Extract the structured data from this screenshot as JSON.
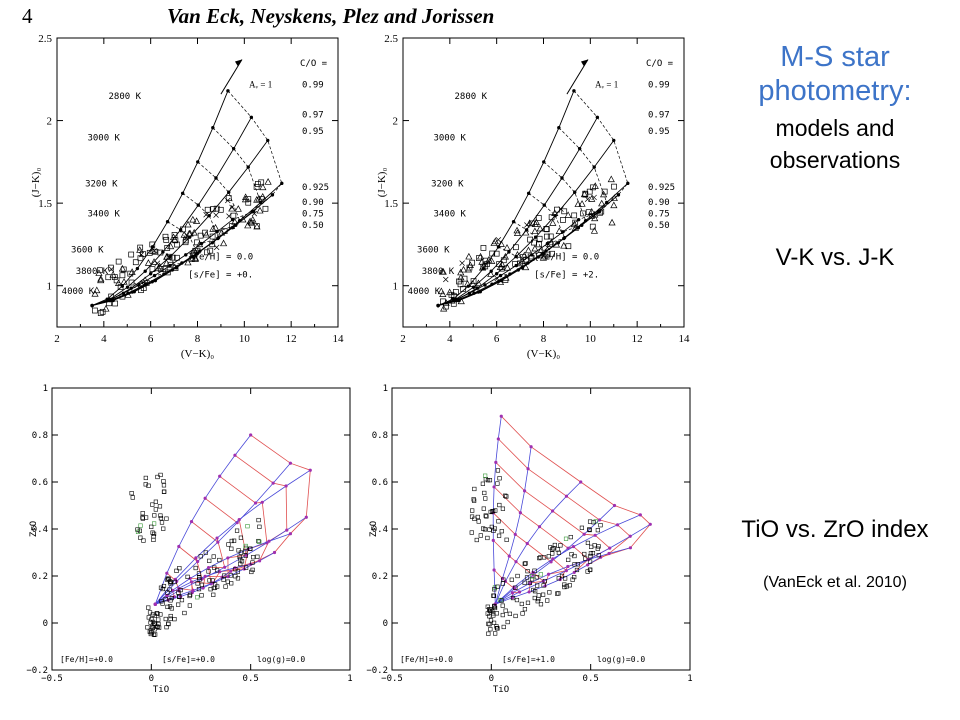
{
  "header": {
    "page_number": "4",
    "authors": "Van Eck, Neyskens, Plez and Jorissen"
  },
  "side": {
    "title": "M-S star photometry:",
    "subtitle_1": "models and",
    "subtitle_2": "observations",
    "label_top": "V-K vs. J-K",
    "label_bottom": "TiO vs. ZrO index",
    "citation": "(VanEck et al. 2010)"
  },
  "chart_data": [
    {
      "type": "scatter",
      "panel": "top-left",
      "xlabel": "(V−K)₀",
      "ylabel": "(J−K)₀",
      "xlim": [
        2,
        14
      ],
      "ylim": [
        0.75,
        2.5
      ],
      "x_ticks": [
        "2",
        "4",
        "6",
        "8",
        "10",
        "12",
        "14"
      ],
      "y_ticks": [
        "1",
        "1.5",
        "2",
        "2.5"
      ],
      "temperature_labels": [
        "2800 K",
        "3000 K",
        "3200 K",
        "3400 K",
        "3600 K",
        "3800 K",
        "4000 K"
      ],
      "co_header": "C/O =",
      "co_values": [
        "0.99",
        "0.97",
        "0.95",
        "0.925",
        "0.90",
        "0.75",
        "0.50"
      ],
      "av_label": "Aᵥ = 1",
      "feh_label": "[Fe/H] = 0.0",
      "sfe_label": "[s/Fe] = +0."
    },
    {
      "type": "scatter",
      "panel": "top-right",
      "xlabel": "(V−K)₀",
      "ylabel": "(J−K)₀",
      "xlim": [
        2,
        14
      ],
      "ylim": [
        0.75,
        2.5
      ],
      "x_ticks": [
        "2",
        "4",
        "6",
        "8",
        "10",
        "12",
        "14"
      ],
      "y_ticks": [
        "1",
        "1.5",
        "2",
        "2.5"
      ],
      "temperature_labels": [
        "2800 K",
        "3000 K",
        "3200 K",
        "3400 K",
        "3600 K",
        "3800 K",
        "4000 K"
      ],
      "co_header": "C/O =",
      "co_values": [
        "0.99",
        "0.97",
        "0.95",
        "0.925",
        "0.90",
        "0.75",
        "0.50"
      ],
      "av_label": "Aᵥ = 1",
      "feh_label": "[Fe/H] = 0.0",
      "sfe_label": "[s/Fe] = +2."
    },
    {
      "type": "scatter",
      "panel": "bottom-left",
      "xlabel": "TiO",
      "ylabel": "ZrO",
      "xlim": [
        -0.5,
        1
      ],
      "ylim": [
        -0.2,
        1
      ],
      "x_ticks": [
        "−0.5",
        "0",
        "0.5",
        "1"
      ],
      "y_ticks": [
        "−0.2",
        "0",
        "0.2",
        "0.4",
        "0.6",
        "0.8",
        "1"
      ],
      "annotations": [
        "[Fe/H]=+0.0",
        "[s/Fe]=+0.0",
        "log(g)=0.0"
      ]
    },
    {
      "type": "scatter",
      "panel": "bottom-right",
      "xlabel": "TiO",
      "ylabel": "ZrO",
      "xlim": [
        -0.5,
        1
      ],
      "ylim": [
        -0.2,
        1
      ],
      "x_ticks": [
        "−0.5",
        "0",
        "0.5",
        "1"
      ],
      "y_ticks": [
        "−0.2",
        "0",
        "0.2",
        "0.4",
        "0.6",
        "0.8",
        "1"
      ],
      "annotations": [
        "[Fe/H]=+0.0",
        "[s/Fe]=+1.0",
        "log(g)=0.0"
      ]
    }
  ]
}
